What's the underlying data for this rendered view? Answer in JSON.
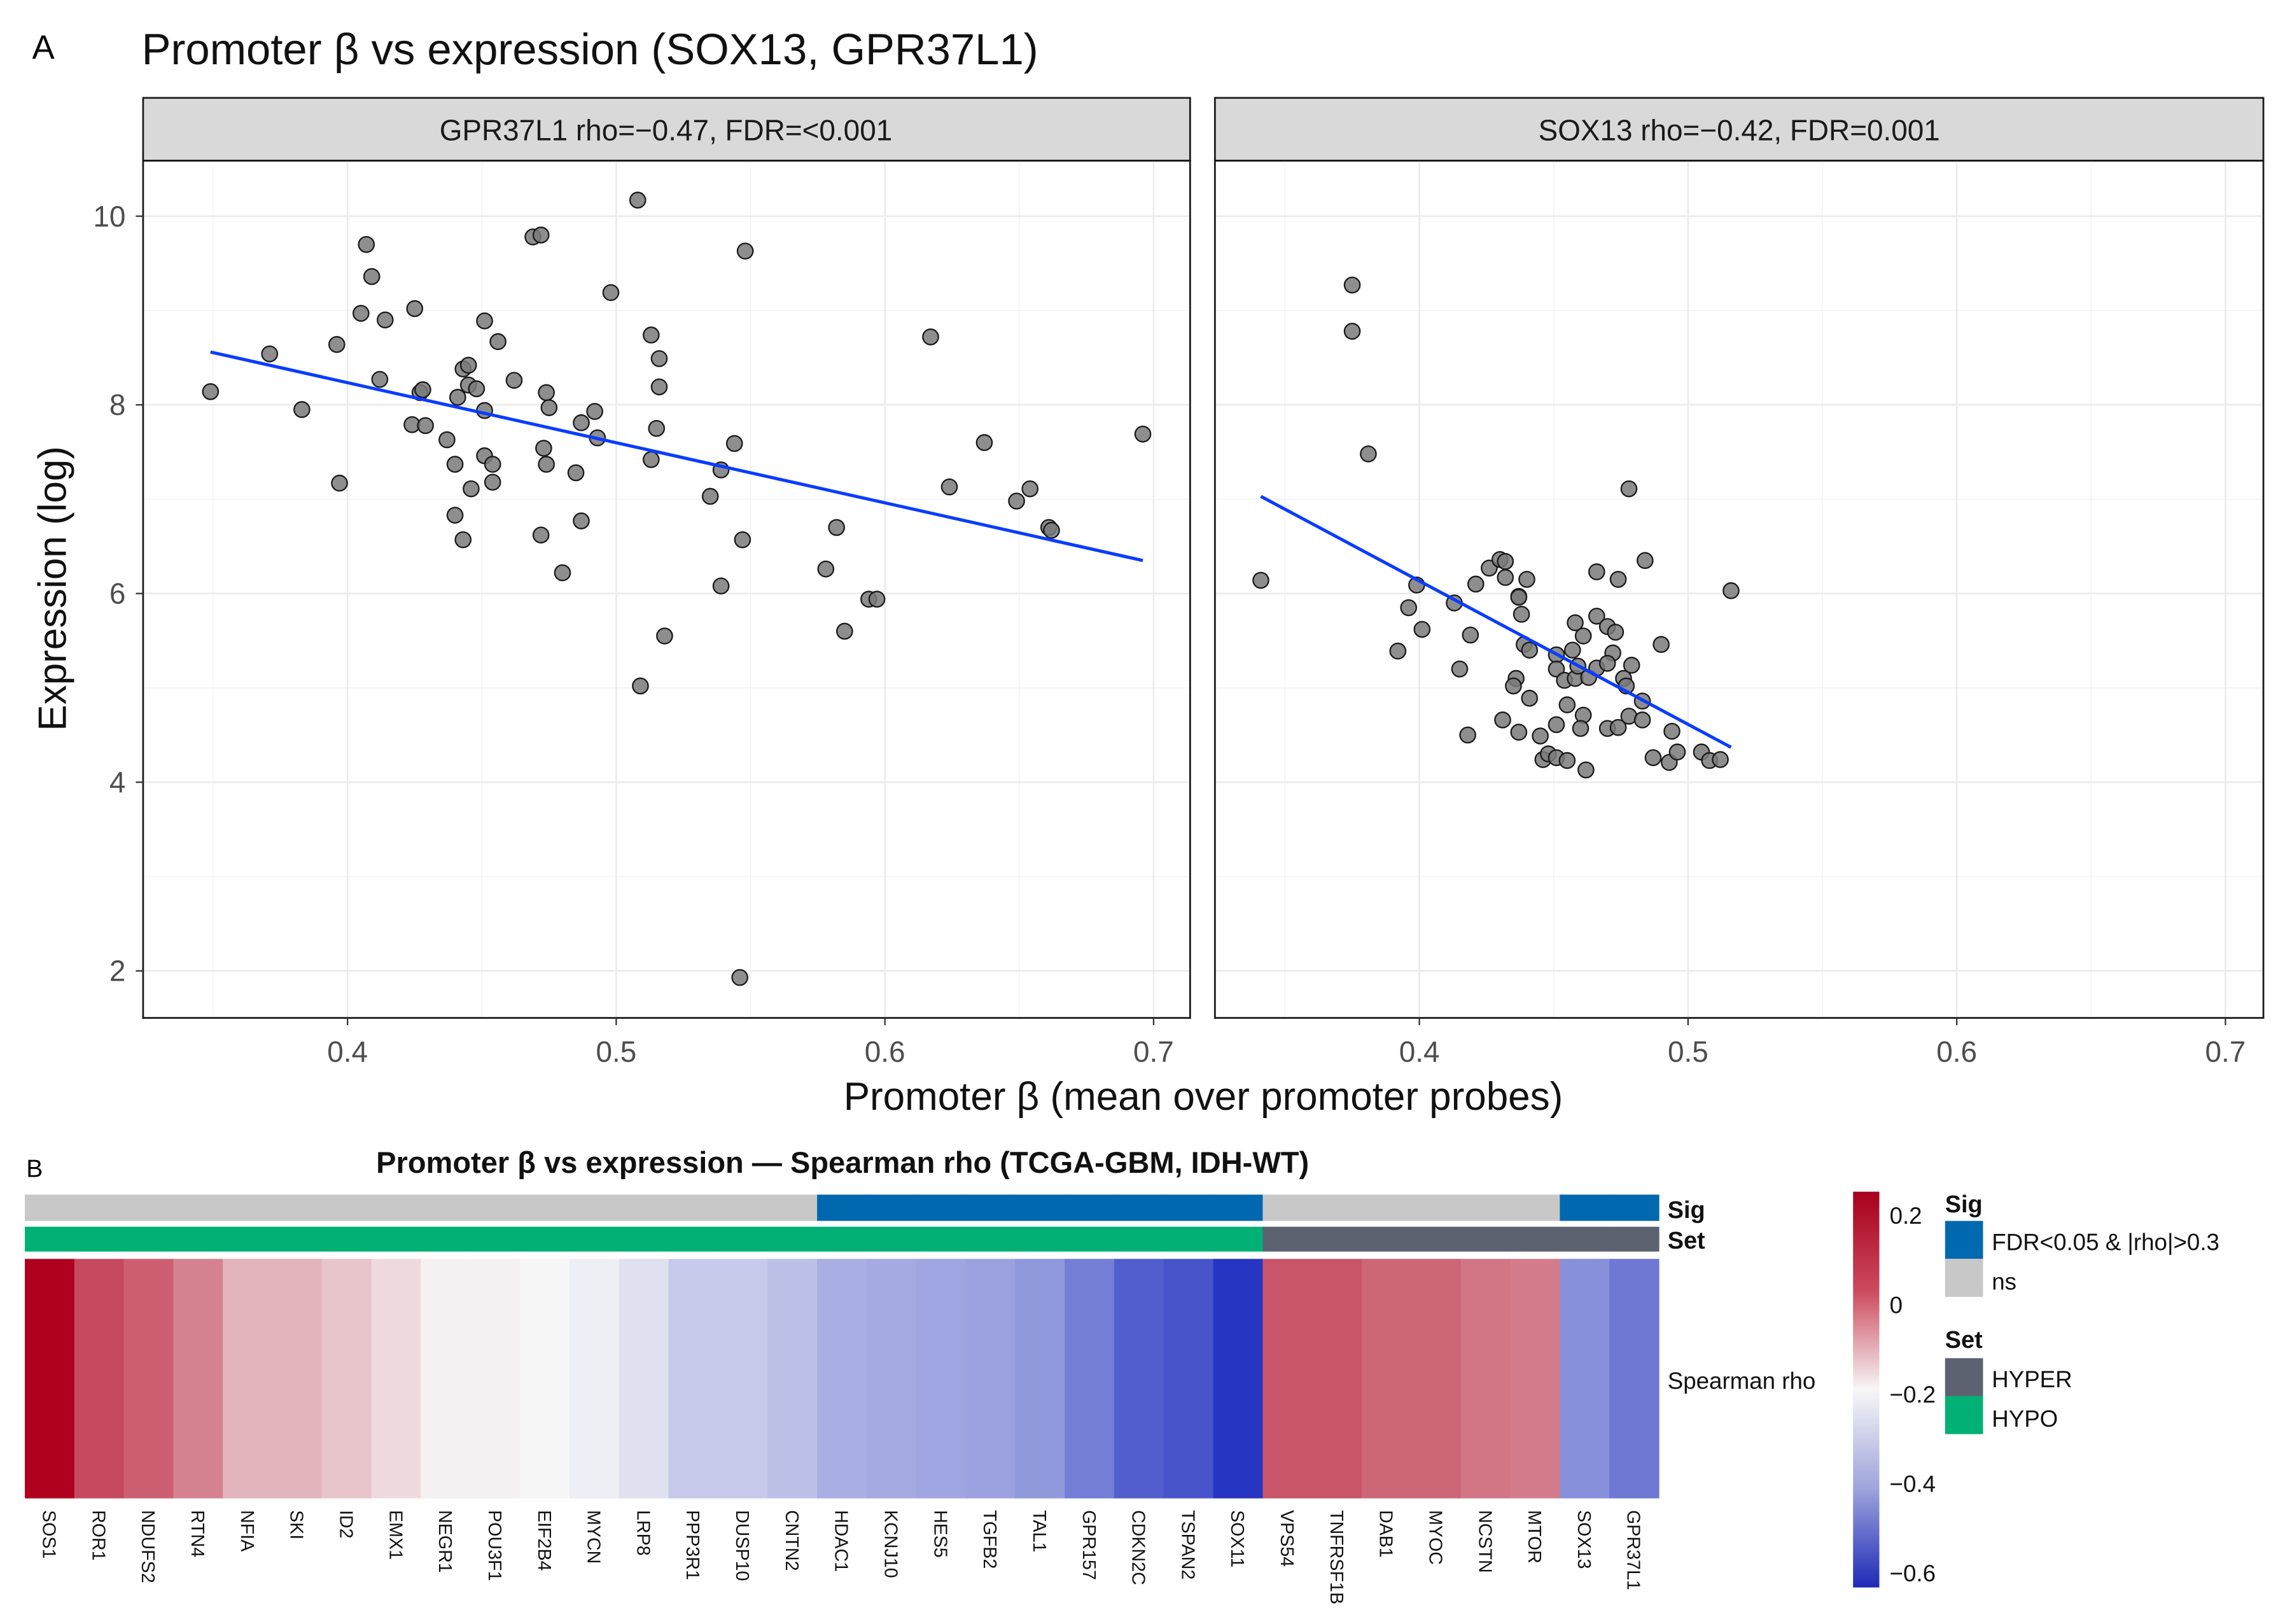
{
  "panel_label_a": "A",
  "panel_label_b": "B",
  "colors": {
    "point": "#7a7a7a",
    "fit_line": "#0a3cff",
    "sig": "#0068ae",
    "ns": "#c8c8c8",
    "hyper": "#5c6270",
    "hypo": "#00b074",
    "high": "#b0001e",
    "mid": "#f7f7f7",
    "low": "#2030c0"
  },
  "chart_data": [
    {
      "type": "scatter",
      "title": "Promoter β vs expression (SOX13, GPR37L1)",
      "xlabel": "Promoter β (mean over promoter probes)",
      "ylabel": "Expression (log)",
      "xlim": [
        0.324,
        0.714
      ],
      "ylim": [
        1.5,
        10.59
      ],
      "xticks": [
        "0.4",
        "0.5",
        "0.6",
        "0.7"
      ],
      "yticks": [
        "2",
        "4",
        "6",
        "8",
        "10"
      ],
      "grid": true,
      "facets": [
        {
          "strip": "GPR37L1  rho=−0.47, FDR=<0.001",
          "fit_line": [
            [
              0.349,
              8.56
            ],
            [
              0.696,
              6.35
            ]
          ],
          "points": [
            [
              0.508,
              10.17
            ],
            [
              0.407,
              9.7
            ],
            [
              0.469,
              9.78
            ],
            [
              0.472,
              9.8
            ],
            [
              0.548,
              9.63
            ],
            [
              0.409,
              9.36
            ],
            [
              0.498,
              9.19
            ],
            [
              0.405,
              8.97
            ],
            [
              0.414,
              8.9
            ],
            [
              0.425,
              9.02
            ],
            [
              0.451,
              8.89
            ],
            [
              0.456,
              8.67
            ],
            [
              0.513,
              8.74
            ],
            [
              0.516,
              8.49
            ],
            [
              0.516,
              8.19
            ],
            [
              0.617,
              8.72
            ],
            [
              0.371,
              8.54
            ],
            [
              0.396,
              8.64
            ],
            [
              0.349,
              8.14
            ],
            [
              0.383,
              7.95
            ],
            [
              0.412,
              8.27
            ],
            [
              0.427,
              8.13
            ],
            [
              0.428,
              8.16
            ],
            [
              0.443,
              8.38
            ],
            [
              0.445,
              8.42
            ],
            [
              0.445,
              8.21
            ],
            [
              0.448,
              8.17
            ],
            [
              0.441,
              8.08
            ],
            [
              0.462,
              8.26
            ],
            [
              0.474,
              8.13
            ],
            [
              0.475,
              7.97
            ],
            [
              0.451,
              7.94
            ],
            [
              0.492,
              7.93
            ],
            [
              0.487,
              7.81
            ],
            [
              0.493,
              7.65
            ],
            [
              0.424,
              7.79
            ],
            [
              0.429,
              7.78
            ],
            [
              0.437,
              7.63
            ],
            [
              0.515,
              7.75
            ],
            [
              0.544,
              7.59
            ],
            [
              0.637,
              7.6
            ],
            [
              0.696,
              7.69
            ],
            [
              0.44,
              7.37
            ],
            [
              0.451,
              7.46
            ],
            [
              0.454,
              7.37
            ],
            [
              0.454,
              7.18
            ],
            [
              0.446,
              7.11
            ],
            [
              0.473,
              7.54
            ],
            [
              0.474,
              7.37
            ],
            [
              0.485,
              7.28
            ],
            [
              0.513,
              7.42
            ],
            [
              0.539,
              7.31
            ],
            [
              0.397,
              7.17
            ],
            [
              0.535,
              7.03
            ],
            [
              0.624,
              7.13
            ],
            [
              0.654,
              7.11
            ],
            [
              0.649,
              6.98
            ],
            [
              0.661,
              6.7
            ],
            [
              0.662,
              6.67
            ],
            [
              0.44,
              6.83
            ],
            [
              0.443,
              6.57
            ],
            [
              0.472,
              6.62
            ],
            [
              0.487,
              6.77
            ],
            [
              0.547,
              6.57
            ],
            [
              0.582,
              6.7
            ],
            [
              0.48,
              6.22
            ],
            [
              0.578,
              6.26
            ],
            [
              0.539,
              6.08
            ],
            [
              0.594,
              5.94
            ],
            [
              0.597,
              5.94
            ],
            [
              0.585,
              5.6
            ],
            [
              0.518,
              5.55
            ],
            [
              0.509,
              5.02
            ],
            [
              0.546,
              1.93
            ]
          ]
        },
        {
          "strip": "SOX13  rho=−0.42, FDR=0.001",
          "fit_line": [
            [
              0.341,
              7.03
            ],
            [
              0.516,
              4.37
            ]
          ],
          "points": [
            [
              0.375,
              9.27
            ],
            [
              0.375,
              8.78
            ],
            [
              0.381,
              7.48
            ],
            [
              0.478,
              7.11
            ],
            [
              0.341,
              6.14
            ],
            [
              0.516,
              6.03
            ],
            [
              0.484,
              6.35
            ],
            [
              0.466,
              6.23
            ],
            [
              0.474,
              6.15
            ],
            [
              0.399,
              6.09
            ],
            [
              0.396,
              5.85
            ],
            [
              0.401,
              5.62
            ],
            [
              0.392,
              5.39
            ],
            [
              0.413,
              5.9
            ],
            [
              0.421,
              6.1
            ],
            [
              0.419,
              5.56
            ],
            [
              0.415,
              5.2
            ],
            [
              0.418,
              4.5
            ],
            [
              0.426,
              6.27
            ],
            [
              0.43,
              6.36
            ],
            [
              0.432,
              6.34
            ],
            [
              0.432,
              6.17
            ],
            [
              0.44,
              6.15
            ],
            [
              0.437,
              5.97
            ],
            [
              0.437,
              5.96
            ],
            [
              0.438,
              5.78
            ],
            [
              0.439,
              5.46
            ],
            [
              0.441,
              5.4
            ],
            [
              0.436,
              5.1
            ],
            [
              0.435,
              5.02
            ],
            [
              0.441,
              4.89
            ],
            [
              0.431,
              4.66
            ],
            [
              0.437,
              4.53
            ],
            [
              0.445,
              4.49
            ],
            [
              0.451,
              4.61
            ],
            [
              0.446,
              4.24
            ],
            [
              0.448,
              4.3
            ],
            [
              0.451,
              4.26
            ],
            [
              0.455,
              4.23
            ],
            [
              0.462,
              4.13
            ],
            [
              0.451,
              5.35
            ],
            [
              0.457,
              5.4
            ],
            [
              0.451,
              5.2
            ],
            [
              0.454,
              5.08
            ],
            [
              0.458,
              5.1
            ],
            [
              0.459,
              5.23
            ],
            [
              0.463,
              5.11
            ],
            [
              0.466,
              5.21
            ],
            [
              0.458,
              5.69
            ],
            [
              0.461,
              5.55
            ],
            [
              0.466,
              5.76
            ],
            [
              0.47,
              5.65
            ],
            [
              0.473,
              5.59
            ],
            [
              0.472,
              5.37
            ],
            [
              0.47,
              5.26
            ],
            [
              0.479,
              5.24
            ],
            [
              0.476,
              5.1
            ],
            [
              0.477,
              5.02
            ],
            [
              0.483,
              4.86
            ],
            [
              0.455,
              4.82
            ],
            [
              0.461,
              4.71
            ],
            [
              0.46,
              4.57
            ],
            [
              0.47,
              4.57
            ],
            [
              0.474,
              4.58
            ],
            [
              0.478,
              4.7
            ],
            [
              0.483,
              4.66
            ],
            [
              0.49,
              5.46
            ],
            [
              0.494,
              4.54
            ],
            [
              0.487,
              4.26
            ],
            [
              0.493,
              4.21
            ],
            [
              0.496,
              4.32
            ],
            [
              0.505,
              4.32
            ],
            [
              0.508,
              4.23
            ],
            [
              0.512,
              4.24
            ]
          ]
        }
      ]
    },
    {
      "type": "heatmap",
      "title": "Promoter β vs expression — Spearman rho (TCGA-GBM, IDH-WT)",
      "row_label": "Spearman rho",
      "annotation_labels": {
        "sig": "Sig",
        "set": "Set"
      },
      "genes": [
        "SOS1",
        "ROR1",
        "NDUFS2",
        "RTN4",
        "NFIA",
        "SKI",
        "ID2",
        "EMX1",
        "NEGR1",
        "POU3F1",
        "EIF2B4",
        "MYCN",
        "LRP8",
        "PPP3R1",
        "DUSP10",
        "CNTN2",
        "HDAC1",
        "KCNJ10",
        "HES5",
        "TGFB2",
        "TAL1",
        "GPR157",
        "CDKN2C",
        "TSPAN2",
        "SOX11",
        "VPS54",
        "TNFRSF1B",
        "DAB1",
        "MYOC",
        "NCSTN",
        "MTOR",
        "SOX13",
        "GPR37L1"
      ],
      "rho": [
        0.25,
        0.12,
        0.08,
        0.02,
        -0.07,
        -0.07,
        -0.1,
        -0.14,
        -0.18,
        -0.18,
        -0.19,
        -0.21,
        -0.24,
        -0.29,
        -0.29,
        -0.31,
        -0.35,
        -0.36,
        -0.37,
        -0.38,
        -0.4,
        -0.46,
        -0.53,
        -0.55,
        -0.62,
        0.1,
        0.1,
        0.07,
        0.07,
        0.04,
        0.03,
        -0.42,
        -0.47
      ],
      "sig": [
        "ns",
        "ns",
        "ns",
        "ns",
        "ns",
        "ns",
        "ns",
        "ns",
        "ns",
        "ns",
        "ns",
        "ns",
        "ns",
        "ns",
        "ns",
        "ns",
        "sig",
        "sig",
        "sig",
        "sig",
        "sig",
        "sig",
        "sig",
        "sig",
        "sig",
        "ns",
        "ns",
        "ns",
        "ns",
        "ns",
        "ns",
        "sig",
        "sig"
      ],
      "set": [
        "HYPO",
        "HYPO",
        "HYPO",
        "HYPO",
        "HYPO",
        "HYPO",
        "HYPO",
        "HYPO",
        "HYPO",
        "HYPO",
        "HYPO",
        "HYPO",
        "HYPO",
        "HYPO",
        "HYPO",
        "HYPO",
        "HYPO",
        "HYPO",
        "HYPO",
        "HYPO",
        "HYPO",
        "HYPO",
        "HYPO",
        "HYPO",
        "HYPO",
        "HYPER",
        "HYPER",
        "HYPER",
        "HYPER",
        "HYPER",
        "HYPER",
        "HYPER",
        "HYPER"
      ],
      "color_range": [
        -0.633,
        0.252
      ],
      "colorbar_ticks": [
        "0.2",
        "0",
        "−0.2",
        "−0.4",
        "−0.6"
      ],
      "legend": {
        "sig_title": "Sig",
        "sig_items": [
          "FDR<0.05 & |rho|>0.3",
          "ns"
        ],
        "set_title": "Set",
        "set_items": [
          "HYPER",
          "HYPO"
        ]
      }
    }
  ]
}
